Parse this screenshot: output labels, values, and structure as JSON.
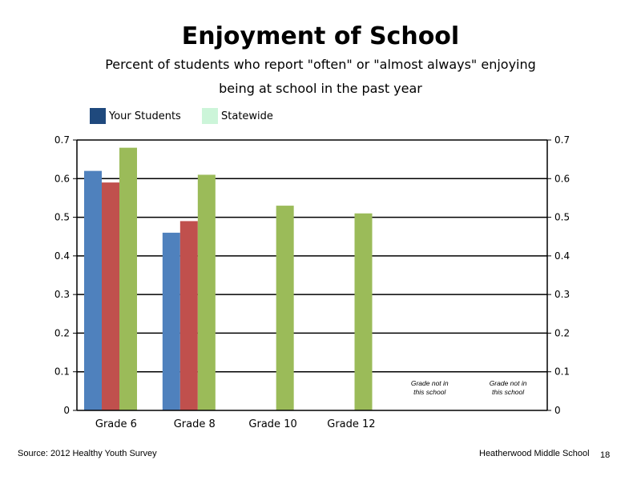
{
  "chart_data": {
    "type": "bar",
    "title": "Enjoyment of School",
    "subtitle_line1": "Percent of students who report \"often\" or \"almost always\" enjoying",
    "subtitle_line2": "being at school in the past year",
    "categories": [
      "Grade 6",
      "Grade 8",
      "Grade 10",
      "Grade 12",
      "",
      ""
    ],
    "category_notes": [
      "",
      "",
      "",
      "",
      "Grade not in this school",
      "Grade not in this school"
    ],
    "series": [
      {
        "name": "Your Students",
        "legend": true,
        "color": "#4f81bd",
        "values": [
          0.62,
          0.46,
          null,
          null,
          null,
          null
        ]
      },
      {
        "name": "",
        "legend": false,
        "color": "#c0504d",
        "values": [
          0.59,
          0.49,
          null,
          null,
          null,
          null
        ]
      },
      {
        "name": "Statewide",
        "legend": true,
        "color": "#9bbb59",
        "values": [
          0.68,
          0.61,
          0.53,
          0.51,
          null,
          null
        ]
      }
    ],
    "legend_colors": {
      "your_students": "#1f497d",
      "statewide": "#ccf5d9"
    },
    "ylim": [
      0,
      0.7
    ],
    "yticks": [
      "0",
      "0.1",
      "0.2",
      "0.3",
      "0.4",
      "0.5",
      "0.6",
      "0.7"
    ],
    "secondary_yticks": [
      "0",
      "0.1",
      "0.2",
      "0.3",
      "0.4",
      "0.5",
      "0.6",
      "0.7"
    ],
    "grid": true,
    "legend_position": "top-left"
  },
  "legend": {
    "your_students": "Your Students",
    "statewide": "Statewide"
  },
  "footer": {
    "source": "Source: 2012 Healthy Youth Survey",
    "school": "Heatherwood Middle  School",
    "page_number": "18"
  }
}
